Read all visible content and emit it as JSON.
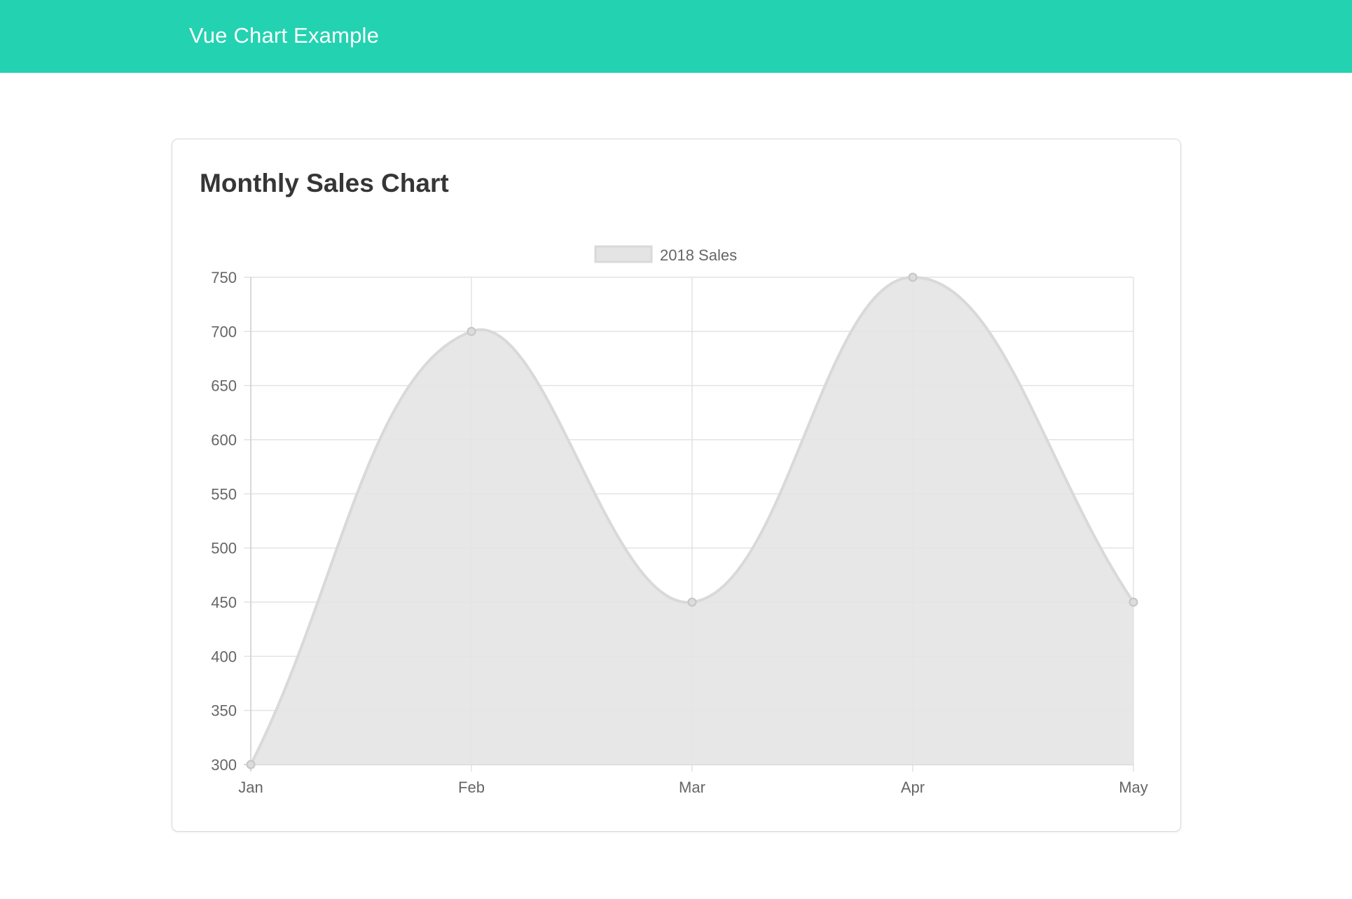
{
  "header": {
    "title": "Vue Chart Example",
    "background": "#23d2b1"
  },
  "card": {
    "title": "Monthly Sales Chart"
  },
  "chart_data": {
    "type": "area",
    "categories": [
      "Jan",
      "Feb",
      "Mar",
      "Apr",
      "May"
    ],
    "series": [
      {
        "name": "2018 Sales",
        "values": [
          300,
          700,
          450,
          750,
          450
        ],
        "fill": "#e4e4e4",
        "stroke": "#d9d9d9"
      }
    ],
    "title": "",
    "xlabel": "",
    "ylabel": "",
    "ylim": [
      300,
      750
    ],
    "yticks": [
      "300",
      "350",
      "400",
      "450",
      "500",
      "550",
      "600",
      "650",
      "700",
      "750"
    ],
    "grid": true,
    "curve": "smooth",
    "legend_position": "top-center"
  }
}
